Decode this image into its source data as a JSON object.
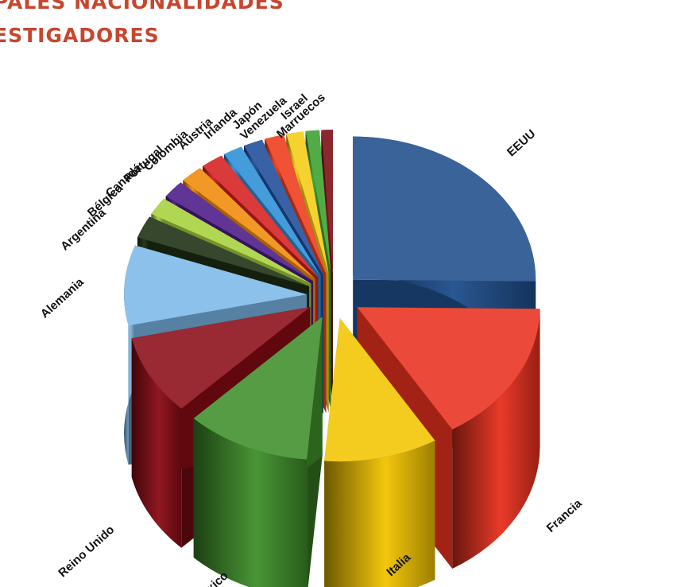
{
  "title": {
    "line1": "PALES NACIONALIDADES",
    "line2": "ESTIGADORES"
  },
  "chart_data": {
    "type": "pie",
    "style": "exploded 3D pie",
    "title": "PALES NACIONALIDADES ESTIGADORES",
    "legend": "none (slice labels placed around the pie)",
    "slices": [
      {
        "label": "EEUU",
        "value": 25.0,
        "color": "#1f4e8c"
      },
      {
        "label": "Francia",
        "value": 16.0,
        "color": "#e8301e"
      },
      {
        "label": "Italia",
        "value": 10.0,
        "color": "#f2c400"
      },
      {
        "label": "México",
        "value": 11.0,
        "color": "#3f8f2a"
      },
      {
        "label": "Reino Unido",
        "value": 9.0,
        "color": "#8b0c16"
      },
      {
        "label": "Alemania",
        "value": 9.0,
        "color": "#7cb8e8"
      },
      {
        "label": "Argentina",
        "value": 2.5,
        "color": "#1c2e12"
      },
      {
        "label": "Bélgica",
        "value": 2.0,
        "color": "#a6d13a"
      },
      {
        "label": "Canadá",
        "value": 2.0,
        "color": "#4a1a86"
      },
      {
        "label": "Portugal",
        "value": 2.0,
        "color": "#f08a0a"
      },
      {
        "label": "Colombia",
        "value": 2.0,
        "color": "#d61f1f"
      },
      {
        "label": "Austria",
        "value": 1.7,
        "color": "#2c8fd6"
      },
      {
        "label": "Irlanda",
        "value": 1.7,
        "color": "#1e4d9a"
      },
      {
        "label": "Japón",
        "value": 1.7,
        "color": "#ee3a1a"
      },
      {
        "label": "Venezuela",
        "value": 1.5,
        "color": "#f4cc14"
      },
      {
        "label": "Israel",
        "value": 1.2,
        "color": "#3aa02e"
      },
      {
        "label": "Marruecos",
        "value": 1.0,
        "color": "#7a0b12"
      }
    ]
  }
}
